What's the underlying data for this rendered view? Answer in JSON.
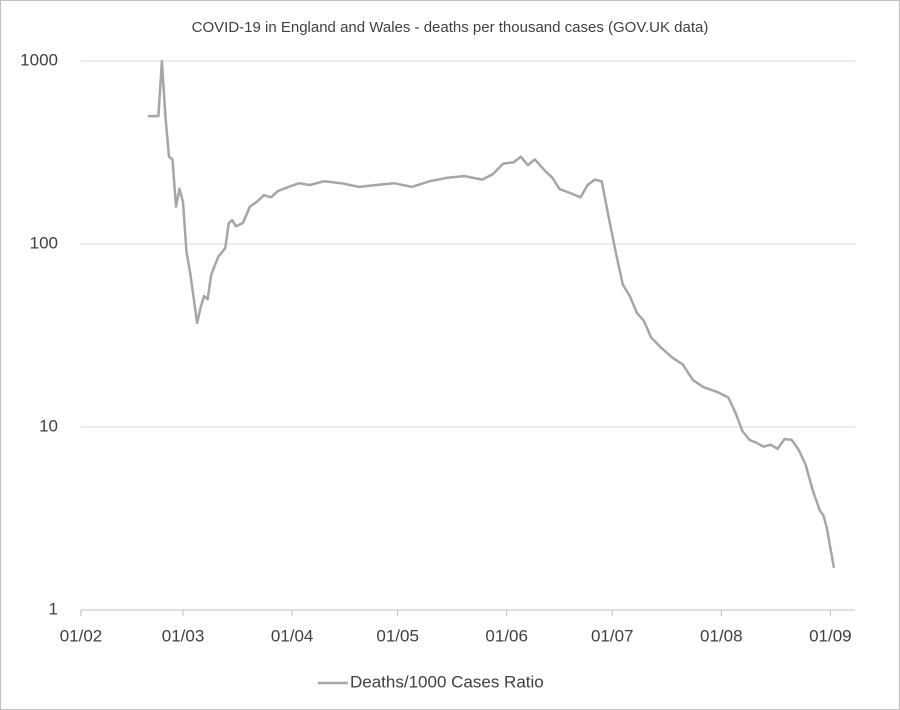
{
  "chart_data": {
    "type": "line",
    "title": "COVID-19 in England and Wales - deaths per thousand cases (GOV.UK data)",
    "x": [
      "20/02",
      "23/02",
      "24/02",
      "25/02",
      "26/02",
      "27/02",
      "28/02",
      "29/02",
      "01/03",
      "02/03",
      "03/03",
      "05/03",
      "06/03",
      "07/03",
      "08/03",
      "09/03",
      "11/03",
      "13/03",
      "14/03",
      "15/03",
      "16/03",
      "18/03",
      "20/03",
      "22/03",
      "24/03",
      "26/03",
      "28/03",
      "31/03",
      "03/04",
      "06/04",
      "10/04",
      "15/04",
      "20/04",
      "25/04",
      "30/04",
      "05/05",
      "10/05",
      "15/05",
      "20/05",
      "25/05",
      "28/05",
      "31/05",
      "03/06",
      "05/06",
      "07/06",
      "09/06",
      "12/06",
      "14/06",
      "16/06",
      "19/06",
      "22/06",
      "24/06",
      "26/06",
      "28/06",
      "30/06",
      "02/07",
      "04/07",
      "06/07",
      "08/07",
      "10/07",
      "12/07",
      "15/07",
      "18/07",
      "21/07",
      "24/07",
      "27/07",
      "31/07",
      "03/08",
      "05/08",
      "07/08",
      "09/08",
      "11/08",
      "13/08",
      "15/08",
      "17/08",
      "19/08",
      "21/08",
      "23/08",
      "25/08",
      "27/08",
      "29/08",
      "30/08",
      "31/08",
      "02/09"
    ],
    "series": [
      {
        "name": "Deaths/1000 Cases Ratio",
        "color": "#a6a6a6",
        "values": [
          500,
          500,
          1000,
          500,
          300,
          290,
          160,
          200,
          170,
          90,
          70,
          37,
          45,
          52,
          50,
          68,
          85,
          95,
          130,
          135,
          125,
          130,
          160,
          170,
          185,
          180,
          195,
          205,
          215,
          210,
          220,
          215,
          205,
          210,
          215,
          205,
          220,
          230,
          235,
          225,
          240,
          275,
          280,
          300,
          270,
          290,
          250,
          230,
          200,
          190,
          180,
          210,
          225,
          220,
          140,
          90,
          60,
          52,
          42,
          38,
          31,
          27,
          24,
          22,
          18,
          16.5,
          15.5,
          14.5,
          12,
          9.5,
          8.5,
          8.2,
          7.8,
          8,
          7.6,
          8.6,
          8.5,
          7.5,
          6.2,
          4.5,
          3.5,
          3.3,
          2.8,
          1.7
        ]
      }
    ],
    "xlim": [
      "01/02",
      "08/09"
    ],
    "xticks": [
      "01/02",
      "01/03",
      "01/04",
      "01/05",
      "01/06",
      "01/07",
      "01/08",
      "01/09"
    ],
    "ylim": [
      1,
      1000
    ],
    "yticks": [
      1,
      10,
      100,
      1000
    ],
    "log_y": true,
    "grid": true,
    "legend": "bottom"
  }
}
